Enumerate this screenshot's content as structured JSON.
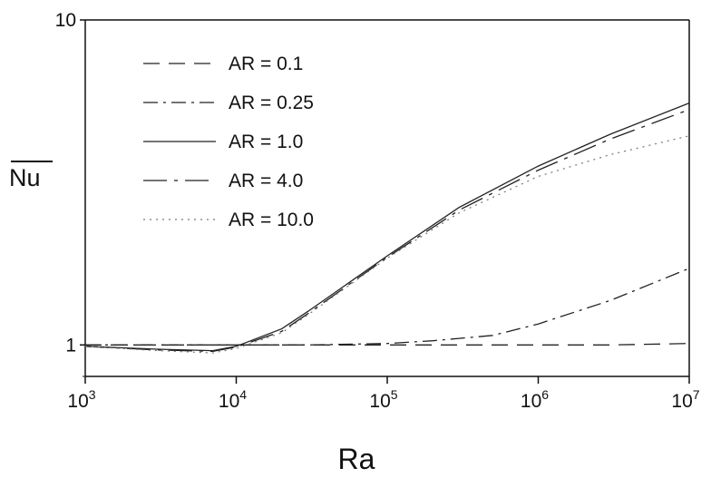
{
  "chart_data": {
    "type": "line",
    "xlabel": "Ra",
    "ylabel": "Nu",
    "ylabel_overbar": true,
    "x_scale": "log",
    "y_scale": "log",
    "xlim": [
      1000,
      10000000
    ],
    "ylim": [
      0.8,
      10
    ],
    "x_ticks": [
      {
        "value": 1000,
        "base": "10",
        "exp": "3"
      },
      {
        "value": 10000,
        "base": "10",
        "exp": "4"
      },
      {
        "value": 100000,
        "base": "10",
        "exp": "5"
      },
      {
        "value": 1000000,
        "base": "10",
        "exp": "6"
      },
      {
        "value": 10000000,
        "base": "10",
        "exp": "7"
      }
    ],
    "y_ticks": [
      {
        "value": 1,
        "label": "1"
      },
      {
        "value": 10,
        "label": "10"
      }
    ],
    "grid": false,
    "legend_position": "top-left",
    "series": [
      {
        "name": "AR = 0.1",
        "dash": "long-dash",
        "x": [
          1000,
          3000,
          10000,
          30000,
          100000,
          300000,
          1000000,
          3000000,
          10000000
        ],
        "y": [
          1.0,
          1.0,
          1.0,
          1.0,
          1.0,
          1.0,
          1.0,
          1.0,
          1.01
        ]
      },
      {
        "name": "AR = 0.25",
        "dash": "dash-dot",
        "x": [
          1000,
          3000,
          10000,
          30000,
          100000,
          200000,
          500000,
          1000000,
          3000000,
          10000000
        ],
        "y": [
          1.0,
          1.0,
          1.0,
          1.0,
          1.01,
          1.03,
          1.07,
          1.16,
          1.37,
          1.72
        ]
      },
      {
        "name": "AR = 1.0",
        "dash": "solid",
        "x": [
          1000,
          3000,
          7000,
          10000,
          20000,
          30000,
          100000,
          300000,
          1000000,
          3000000,
          10000000
        ],
        "y": [
          0.99,
          0.97,
          0.96,
          0.99,
          1.12,
          1.27,
          1.88,
          2.65,
          3.55,
          4.45,
          5.55
        ]
      },
      {
        "name": "AR = 4.0",
        "dash": "long-dash-dot",
        "x": [
          1000,
          3000,
          7000,
          10000,
          20000,
          30000,
          100000,
          300000,
          1000000,
          3000000,
          10000000
        ],
        "y": [
          0.99,
          0.965,
          0.955,
          0.985,
          1.1,
          1.25,
          1.86,
          2.6,
          3.45,
          4.3,
          5.3
        ]
      },
      {
        "name": "AR = 10.0",
        "dash": "dotted",
        "x": [
          1000,
          3000,
          7000,
          10000,
          20000,
          30000,
          100000,
          300000,
          1000000,
          3000000,
          10000000
        ],
        "y": [
          0.99,
          0.96,
          0.945,
          0.975,
          1.09,
          1.24,
          1.85,
          2.55,
          3.3,
          3.85,
          4.4
        ]
      }
    ],
    "line_color": "#222222"
  }
}
